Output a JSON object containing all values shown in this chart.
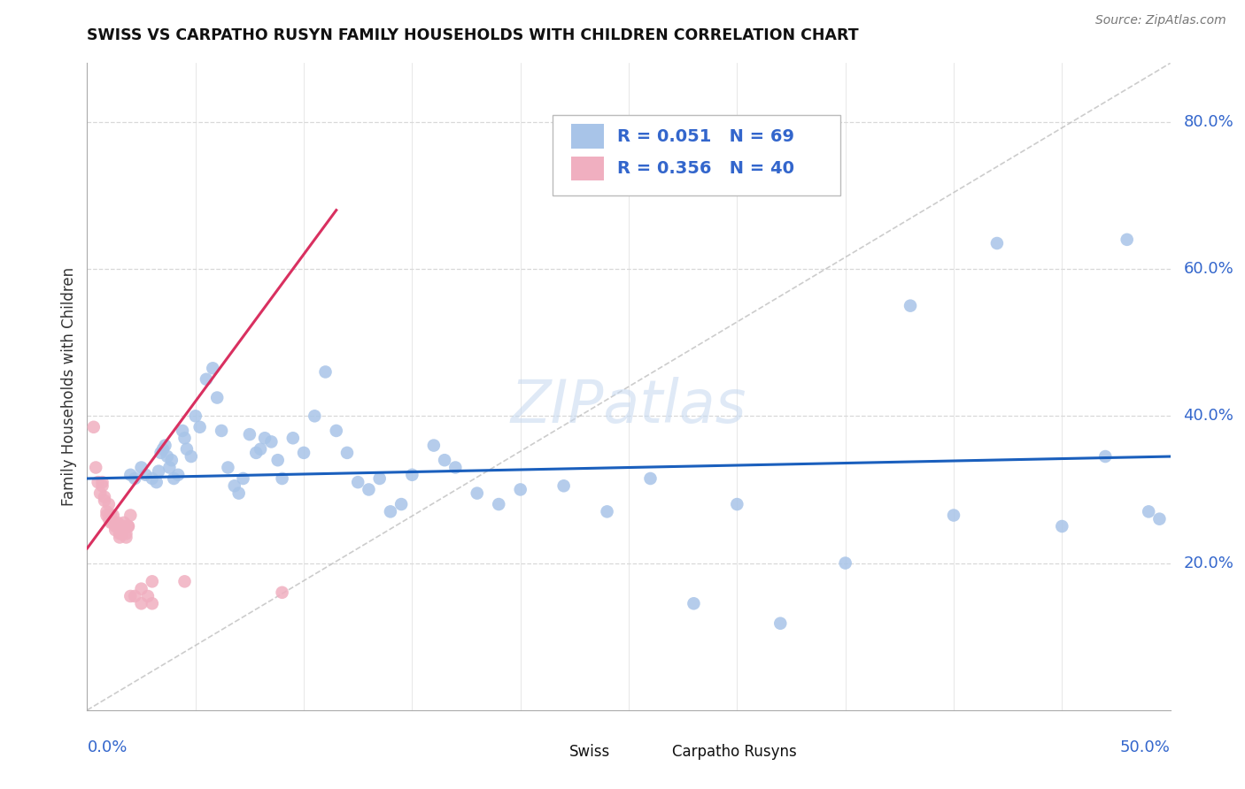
{
  "title": "SWISS VS CARPATHO RUSYN FAMILY HOUSEHOLDS WITH CHILDREN CORRELATION CHART",
  "source": "Source: ZipAtlas.com",
  "ylabel": "Family Households with Children",
  "swiss_color": "#a8c4e8",
  "carpatho_color": "#f0afc0",
  "swiss_trend_color": "#1a5fbd",
  "carpatho_trend_color": "#d93060",
  "diag_color": "#c0c0c0",
  "grid_color": "#d8d8d8",
  "xlim": [
    0.0,
    0.5
  ],
  "ylim": [
    0.0,
    0.88
  ],
  "ytick_vals": [
    0.2,
    0.4,
    0.6,
    0.8
  ],
  "ytick_labels": [
    "20.0%",
    "40.0%",
    "60.0%",
    "80.0%"
  ],
  "xtick_left": "0.0%",
  "xtick_right": "50.0%",
  "legend1_r": "0.051",
  "legend1_n": "69",
  "legend2_r": "0.356",
  "legend2_n": "40",
  "bottom_legend_swiss": "Swiss",
  "bottom_legend_carpatho": "Carpatho Rusyns",
  "watermark": "ZIPatlas",
  "swiss_trend_x": [
    0.0,
    0.5
  ],
  "swiss_trend_y": [
    0.315,
    0.345
  ],
  "carpatho_trend_x": [
    0.0,
    0.115
  ],
  "carpatho_trend_y": [
    0.22,
    0.68
  ],
  "swiss_x": [
    0.02,
    0.022,
    0.025,
    0.027,
    0.03,
    0.032,
    0.033,
    0.034,
    0.035,
    0.036,
    0.037,
    0.038,
    0.039,
    0.04,
    0.042,
    0.044,
    0.045,
    0.046,
    0.048,
    0.05,
    0.052,
    0.055,
    0.058,
    0.06,
    0.062,
    0.065,
    0.068,
    0.07,
    0.072,
    0.075,
    0.078,
    0.08,
    0.082,
    0.085,
    0.088,
    0.09,
    0.095,
    0.1,
    0.105,
    0.11,
    0.115,
    0.12,
    0.125,
    0.13,
    0.135,
    0.14,
    0.145,
    0.15,
    0.16,
    0.165,
    0.17,
    0.18,
    0.19,
    0.2,
    0.22,
    0.24,
    0.26,
    0.28,
    0.3,
    0.32,
    0.35,
    0.38,
    0.4,
    0.42,
    0.45,
    0.47,
    0.48,
    0.49,
    0.495
  ],
  "swiss_y": [
    0.32,
    0.315,
    0.33,
    0.32,
    0.315,
    0.31,
    0.325,
    0.35,
    0.355,
    0.36,
    0.345,
    0.33,
    0.34,
    0.315,
    0.32,
    0.38,
    0.37,
    0.355,
    0.345,
    0.4,
    0.385,
    0.45,
    0.465,
    0.425,
    0.38,
    0.33,
    0.305,
    0.295,
    0.315,
    0.375,
    0.35,
    0.355,
    0.37,
    0.365,
    0.34,
    0.315,
    0.37,
    0.35,
    0.4,
    0.46,
    0.38,
    0.35,
    0.31,
    0.3,
    0.315,
    0.27,
    0.28,
    0.32,
    0.36,
    0.34,
    0.33,
    0.295,
    0.28,
    0.3,
    0.305,
    0.27,
    0.315,
    0.145,
    0.28,
    0.118,
    0.2,
    0.55,
    0.265,
    0.635,
    0.25,
    0.345,
    0.64,
    0.27,
    0.26
  ],
  "carpatho_x": [
    0.003,
    0.004,
    0.005,
    0.006,
    0.007,
    0.007,
    0.008,
    0.008,
    0.009,
    0.009,
    0.01,
    0.01,
    0.011,
    0.011,
    0.012,
    0.012,
    0.013,
    0.013,
    0.014,
    0.014,
    0.015,
    0.015,
    0.016,
    0.016,
    0.017,
    0.017,
    0.018,
    0.018,
    0.019,
    0.019,
    0.02,
    0.02,
    0.022,
    0.025,
    0.025,
    0.028,
    0.03,
    0.03,
    0.045,
    0.09
  ],
  "carpatho_y": [
    0.385,
    0.33,
    0.31,
    0.295,
    0.31,
    0.305,
    0.285,
    0.29,
    0.27,
    0.265,
    0.28,
    0.26,
    0.265,
    0.255,
    0.265,
    0.255,
    0.25,
    0.245,
    0.255,
    0.25,
    0.24,
    0.235,
    0.24,
    0.24,
    0.255,
    0.25,
    0.24,
    0.235,
    0.25,
    0.25,
    0.265,
    0.155,
    0.155,
    0.145,
    0.165,
    0.155,
    0.175,
    0.145,
    0.175,
    0.16
  ]
}
